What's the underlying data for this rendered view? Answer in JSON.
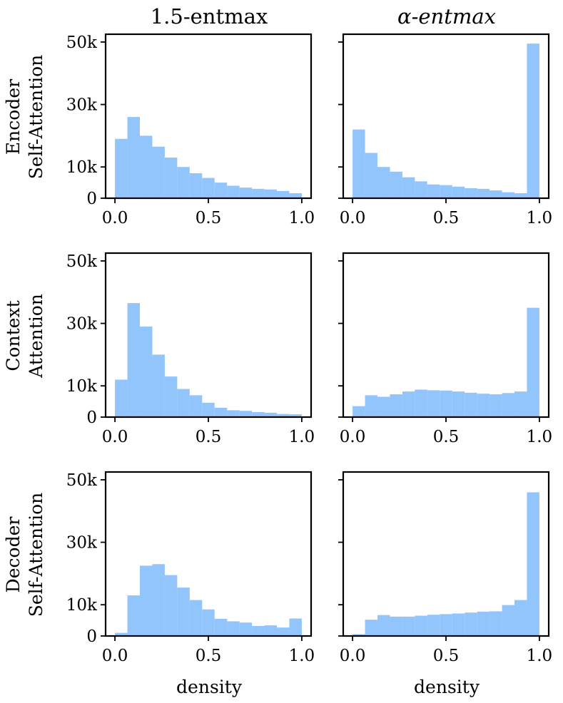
{
  "figure": {
    "column_titles": [
      "1.5-entmax",
      "α-entmax"
    ],
    "row_labels": [
      [
        "Encoder",
        "Self-Attention"
      ],
      [
        "Context",
        "Attention"
      ],
      [
        "Decoder",
        "Self-Attention"
      ]
    ],
    "xlabel": "density",
    "bar_color": "#93c5fd"
  },
  "chart_data": [
    {
      "type": "bar",
      "subplot": "encoder-1.5-entmax",
      "row": "Encoder Self-Attention",
      "column": "1.5-entmax",
      "title": "1.5-entmax",
      "xlabel": "",
      "ylabel": "",
      "bin_edges": [
        0.0,
        0.0667,
        0.1333,
        0.2,
        0.2667,
        0.3333,
        0.4,
        0.4667,
        0.5333,
        0.6,
        0.6667,
        0.7333,
        0.8,
        0.8667,
        0.9333,
        1.0
      ],
      "values": [
        19000,
        26000,
        20000,
        16500,
        13000,
        10000,
        8000,
        6500,
        5000,
        4000,
        3400,
        3000,
        2800,
        2300,
        1600
      ],
      "xlim": [
        -0.05,
        1.05
      ],
      "ylim": [
        0,
        52500
      ],
      "xticks": [
        0.0,
        0.5,
        1.0
      ],
      "xtick_labels": [
        "0.0",
        "0.5",
        "1.0"
      ],
      "yticks": [
        0,
        10000,
        30000,
        50000
      ],
      "ytick_labels": [
        "0",
        "10k",
        "30k",
        "50k"
      ]
    },
    {
      "type": "bar",
      "subplot": "encoder-alpha-entmax",
      "row": "Encoder Self-Attention",
      "column": "α-entmax",
      "title": "α-entmax",
      "xlabel": "",
      "ylabel": "",
      "bin_edges": [
        0.0,
        0.0667,
        0.1333,
        0.2,
        0.2667,
        0.3333,
        0.4,
        0.4667,
        0.5333,
        0.6,
        0.6667,
        0.7333,
        0.8,
        0.8667,
        0.9333,
        1.0
      ],
      "values": [
        22000,
        14500,
        10000,
        8500,
        6700,
        5400,
        4400,
        4200,
        3700,
        3200,
        3000,
        2500,
        1900,
        1600,
        49500
      ],
      "xlim": [
        -0.05,
        1.05
      ],
      "ylim": [
        0,
        52500
      ],
      "xticks": [
        0.0,
        0.5,
        1.0
      ],
      "xtick_labels": [
        "0.0",
        "0.5",
        "1.0"
      ],
      "yticks": [
        0,
        10000,
        30000,
        50000
      ],
      "ytick_labels": [
        "",
        "",
        "",
        ""
      ]
    },
    {
      "type": "bar",
      "subplot": "context-1.5-entmax",
      "row": "Context Attention",
      "column": "1.5-entmax",
      "title": "",
      "xlabel": "",
      "ylabel": "",
      "bin_edges": [
        0.0,
        0.0667,
        0.1333,
        0.2,
        0.2667,
        0.3333,
        0.4,
        0.4667,
        0.5333,
        0.6,
        0.6667,
        0.7333,
        0.8,
        0.8667,
        0.9333,
        1.0
      ],
      "values": [
        12000,
        36500,
        29000,
        20000,
        13000,
        9000,
        7000,
        4600,
        3000,
        2200,
        2000,
        1600,
        1400,
        1000,
        900
      ],
      "xlim": [
        -0.05,
        1.05
      ],
      "ylim": [
        0,
        52500
      ],
      "xticks": [
        0.0,
        0.5,
        1.0
      ],
      "xtick_labels": [
        "0.0",
        "0.5",
        "1.0"
      ],
      "yticks": [
        0,
        10000,
        30000,
        50000
      ],
      "ytick_labels": [
        "0",
        "10k",
        "30k",
        "50k"
      ]
    },
    {
      "type": "bar",
      "subplot": "context-alpha-entmax",
      "row": "Context Attention",
      "column": "α-entmax",
      "title": "",
      "xlabel": "",
      "ylabel": "",
      "bin_edges": [
        0.0,
        0.0667,
        0.1333,
        0.2,
        0.2667,
        0.3333,
        0.4,
        0.4667,
        0.5333,
        0.6,
        0.6667,
        0.7333,
        0.8,
        0.8667,
        0.9333,
        1.0
      ],
      "values": [
        3500,
        7000,
        6500,
        7300,
        8200,
        8800,
        8600,
        8500,
        8200,
        7800,
        7500,
        7300,
        7700,
        8200,
        35000
      ],
      "xlim": [
        -0.05,
        1.05
      ],
      "ylim": [
        0,
        52500
      ],
      "xticks": [
        0.0,
        0.5,
        1.0
      ],
      "xtick_labels": [
        "0.0",
        "0.5",
        "1.0"
      ],
      "yticks": [
        0,
        10000,
        30000,
        50000
      ],
      "ytick_labels": [
        "",
        "",
        "",
        ""
      ]
    },
    {
      "type": "bar",
      "subplot": "decoder-1.5-entmax",
      "row": "Decoder Self-Attention",
      "column": "1.5-entmax",
      "title": "",
      "xlabel": "density",
      "ylabel": "",
      "bin_edges": [
        0.0,
        0.0667,
        0.1333,
        0.2,
        0.2667,
        0.3333,
        0.4,
        0.4667,
        0.5333,
        0.6,
        0.6667,
        0.7333,
        0.8,
        0.8667,
        0.9333,
        1.0
      ],
      "values": [
        1000,
        13000,
        22500,
        23000,
        19500,
        15500,
        11500,
        8500,
        5500,
        4700,
        4300,
        3200,
        3400,
        2700,
        5600
      ],
      "xlim": [
        -0.05,
        1.05
      ],
      "ylim": [
        0,
        52500
      ],
      "xticks": [
        0.0,
        0.5,
        1.0
      ],
      "xtick_labels": [
        "0.0",
        "0.5",
        "1.0"
      ],
      "yticks": [
        0,
        10000,
        30000,
        50000
      ],
      "ytick_labels": [
        "0",
        "10k",
        "30k",
        "50k"
      ]
    },
    {
      "type": "bar",
      "subplot": "decoder-alpha-entmax",
      "row": "Decoder Self-Attention",
      "column": "α-entmax",
      "title": "",
      "xlabel": "density",
      "ylabel": "",
      "bin_edges": [
        0.0,
        0.0667,
        0.1333,
        0.2,
        0.2667,
        0.3333,
        0.4,
        0.4667,
        0.5333,
        0.6,
        0.6667,
        0.7333,
        0.8,
        0.8667,
        0.9333,
        1.0
      ],
      "values": [
        600,
        5200,
        6700,
        6200,
        6200,
        6500,
        6800,
        7000,
        7200,
        7500,
        7800,
        7900,
        9900,
        11500,
        46000
      ],
      "xlim": [
        -0.05,
        1.05
      ],
      "ylim": [
        0,
        52500
      ],
      "xticks": [
        0.0,
        0.5,
        1.0
      ],
      "xtick_labels": [
        "0.0",
        "0.5",
        "1.0"
      ],
      "yticks": [
        0,
        10000,
        30000,
        50000
      ],
      "ytick_labels": [
        "",
        "",
        "",
        ""
      ]
    }
  ]
}
